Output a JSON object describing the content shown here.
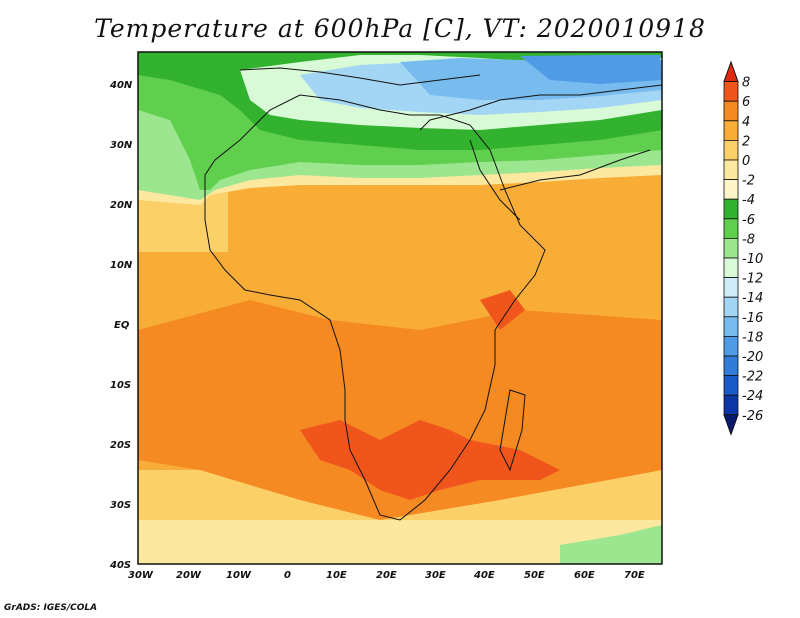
{
  "title": "Temperature at 600hPa [C], VT: 2020010918",
  "credit": "GrADS: IGES/COLA",
  "lon_labels": [
    "30W",
    "20W",
    "10W",
    "0",
    "10E",
    "20E",
    "30E",
    "40E",
    "50E",
    "60E",
    "70E"
  ],
  "lat_labels": [
    "40N",
    "30N",
    "20N",
    "10N",
    "EQ",
    "10S",
    "20S",
    "30S",
    "40S"
  ],
  "colorbar": {
    "labels": [
      "8",
      "6",
      "4",
      "2",
      "0",
      "-2",
      "-4",
      "-6",
      "-8",
      "-10",
      "-12",
      "-14",
      "-16",
      "-18",
      "-20",
      "-22",
      "-24",
      "-26"
    ],
    "colors": [
      "#e02a10",
      "#f0561c",
      "#f58a22",
      "#f8ad36",
      "#fbd069",
      "#fde89f",
      "#fdf6c9",
      "#32b22e",
      "#5fcf4d",
      "#9be68f",
      "#d8fad7",
      "#cfeefa",
      "#a3d6f5",
      "#78bcef",
      "#4f9be6",
      "#2f7cd9",
      "#1a5ac8",
      "#0e35a5",
      "#0a1a70"
    ]
  },
  "regions": {
    "arctic_cold": "north Mediterranean cold core",
    "warm_core": "southern Africa warm anomaly"
  }
}
